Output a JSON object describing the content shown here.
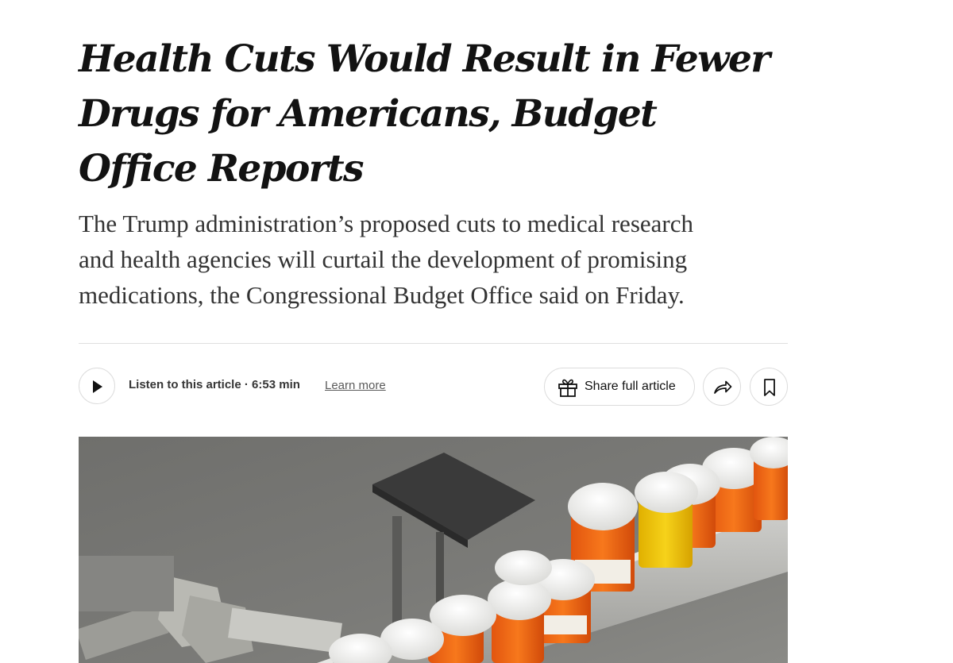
{
  "article": {
    "headline_lines": [
      "Health Cuts Would Result in Fewer",
      "Drugs for Americans, Budget",
      "Office Reports"
    ],
    "summary_lines": [
      "The Trump administration’s proposed cuts to medical research",
      "and health agencies will curtail the development of promising",
      "medications, the Congressional Budget Office said on Friday."
    ]
  },
  "toolbar": {
    "listen_label": "Listen to this article",
    "listen_separator": "·",
    "listen_duration": "6:53 min",
    "learn_more": "Learn more",
    "share_full_label": "Share full article",
    "play_icon": "play-icon",
    "gift_icon": "gift-icon",
    "share_icon": "share-arrow-icon",
    "save_icon": "bookmark-icon"
  },
  "photo": {
    "subject": "prescription-bottles-on-conveyor"
  },
  "colors": {
    "headline": "#121212",
    "summary": "#333333",
    "divider": "#dfdfdf",
    "button_border": "#dcdcdc"
  }
}
